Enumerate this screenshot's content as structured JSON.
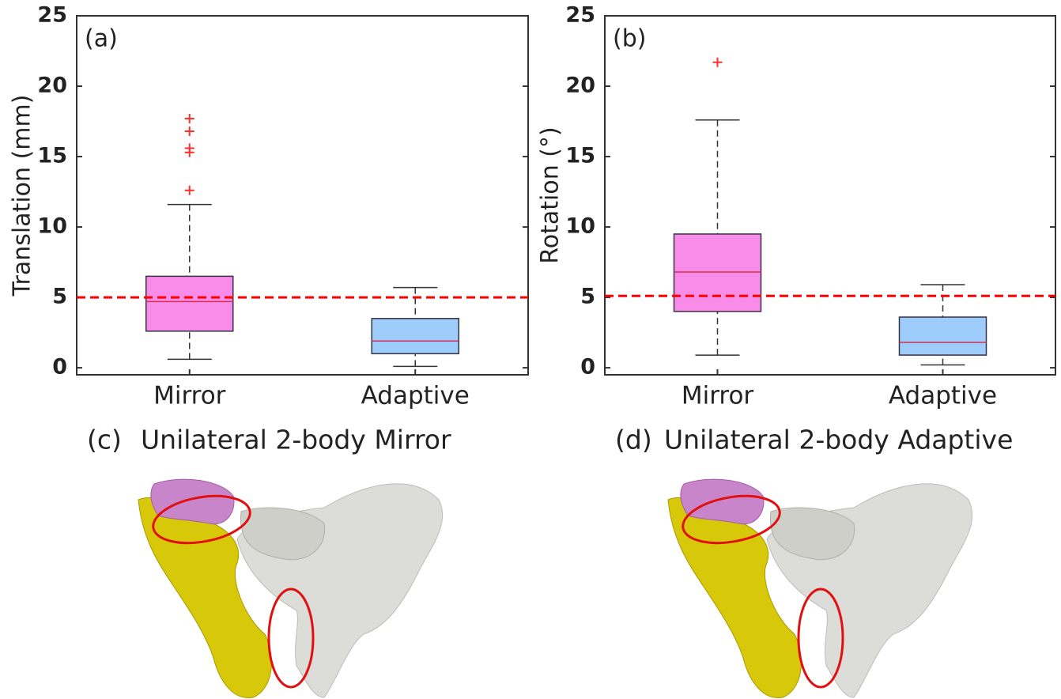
{
  "chart_data": [
    {
      "type": "box",
      "panel_label": "(a)",
      "y_label": "Translation (mm)",
      "categories": [
        "Mirror",
        "Adaptive"
      ],
      "boxes": [
        {
          "whisker_low": 0.6,
          "q1": 2.6,
          "median": 4.7,
          "q3": 6.5,
          "whisker_high": 11.6,
          "outliers": [
            17.7,
            16.8,
            15.6,
            15.3,
            12.6
          ],
          "color": "#f98ce9"
        },
        {
          "whisker_low": 0.1,
          "q1": 1.0,
          "median": 1.9,
          "q3": 3.5,
          "whisker_high": 5.7,
          "outliers": [],
          "color": "#9fcdfb"
        }
      ],
      "threshold": 5,
      "threshold_color": "#ff0000",
      "median_color": "#d0305a",
      "outlier_color": "#ff3030",
      "ylim": [
        -0.5,
        25
      ],
      "yticks": [
        0,
        5,
        10,
        15,
        20,
        25
      ]
    },
    {
      "type": "box",
      "panel_label": "(b)",
      "y_label": "Rotation (°)",
      "categories": [
        "Mirror",
        "Adaptive"
      ],
      "boxes": [
        {
          "whisker_low": 0.9,
          "q1": 4.0,
          "median": 6.8,
          "q3": 9.5,
          "whisker_high": 17.6,
          "outliers": [
            21.7
          ],
          "color": "#f98ce9"
        },
        {
          "whisker_low": 0.2,
          "q1": 0.9,
          "median": 1.8,
          "q3": 3.6,
          "whisker_high": 5.9,
          "outliers": [],
          "color": "#9fcdfb"
        }
      ],
      "threshold": 5.1,
      "threshold_color": "#ff0000",
      "median_color": "#d0305a",
      "outlier_color": "#ff3030",
      "ylim": [
        -0.5,
        25
      ],
      "yticks": [
        0,
        5,
        10,
        15,
        20,
        25
      ]
    }
  ],
  "images": [
    {
      "label": "(c)",
      "caption": "Unilateral 2-body Mirror"
    },
    {
      "label": "(d)",
      "caption": "Unilateral 2-body Adaptive"
    }
  ]
}
